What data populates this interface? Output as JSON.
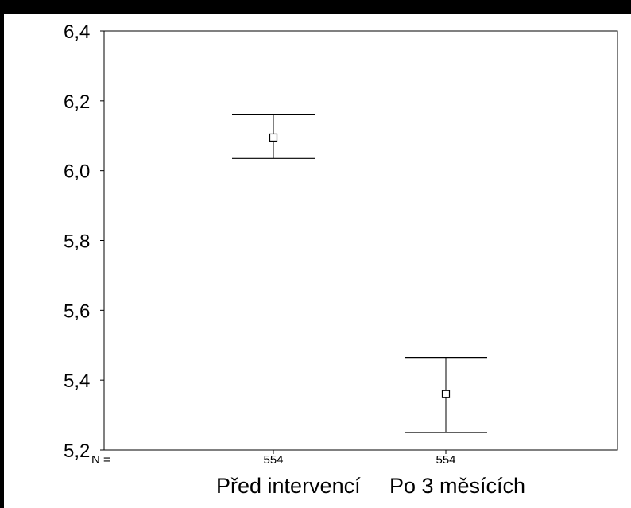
{
  "chart_data": {
    "type": "errorbar",
    "categories": [
      "Před intervencí",
      "Po 3 měsících"
    ],
    "n_label": "N =",
    "n_values": [
      "554",
      "554"
    ],
    "series": [
      {
        "mean": [
          6.095,
          5.36
        ],
        "lower": [
          6.035,
          5.25
        ],
        "upper": [
          6.16,
          5.465
        ]
      }
    ],
    "ylim": [
      5.2,
      6.4
    ],
    "yticks": [
      6.4,
      6.2,
      6.0,
      5.8,
      5.6,
      5.4,
      5.2
    ],
    "ytick_labels": [
      "6,4",
      "6,2",
      "6,0",
      "5,8",
      "5,6",
      "5,4",
      "5,2"
    ],
    "grid": false,
    "colors": {
      "background": "#000000",
      "plot": "#ffffff",
      "ink": "#000000"
    }
  }
}
